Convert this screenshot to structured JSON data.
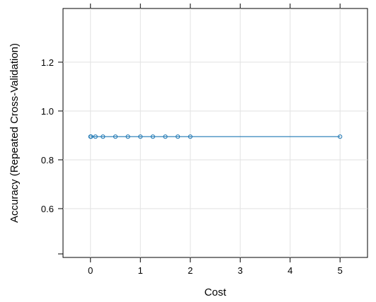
{
  "chart_data": {
    "type": "line",
    "title": "",
    "xlabel": "Cost",
    "ylabel": "Accuracy (Repeated Cross-Validation)",
    "x": [
      0.001,
      0.01,
      0.1,
      0.25,
      0.5,
      0.75,
      1,
      1.25,
      1.5,
      1.75,
      2,
      5
    ],
    "series": [
      {
        "values": [
          0.895,
          0.895,
          0.895,
          0.895,
          0.895,
          0.895,
          0.895,
          0.895,
          0.895,
          0.895,
          0.895,
          0.895
        ]
      }
    ],
    "xlim": [
      -0.55,
      5.55
    ],
    "ylim": [
      0.4,
      1.42
    ],
    "xticks": [
      0,
      1,
      2,
      3,
      4,
      5
    ],
    "yticks": [
      0.6,
      0.8,
      1.0,
      1.2
    ],
    "ytick_labels": [
      "0.6",
      "0.8",
      "1.0",
      "1.2"
    ],
    "grid": true,
    "colors": {
      "series": "#1f78b4",
      "grid": "#e2e2e2",
      "frame": "#000000"
    }
  }
}
